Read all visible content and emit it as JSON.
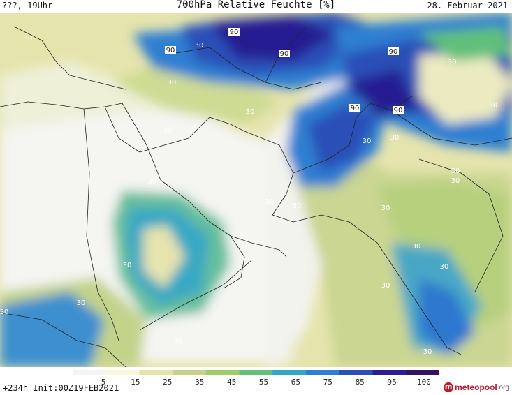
{
  "header": {
    "left": "???, 19Uhr",
    "title": "700hPa Relative Feuchte [%]",
    "date": "28. Februar 2021"
  },
  "map": {
    "contour_label": "30",
    "high_label": "90"
  },
  "colorbar": {
    "ticks": [
      "5",
      "15",
      "25",
      "35",
      "45",
      "55",
      "65",
      "75",
      "85",
      "95",
      "100"
    ],
    "colors": [
      "#f4f4f4",
      "#fbf7dc",
      "#e5e3a9",
      "#c6d288",
      "#9ccd69",
      "#61c07a",
      "#33a7c0",
      "#2f7fd1",
      "#2a4fb7",
      "#281e91",
      "#33125f"
    ]
  },
  "footer": {
    "init": "+234h Init:00Z19FEB2021",
    "brand_name": "meteopool",
    "brand_tld": ".org"
  }
}
